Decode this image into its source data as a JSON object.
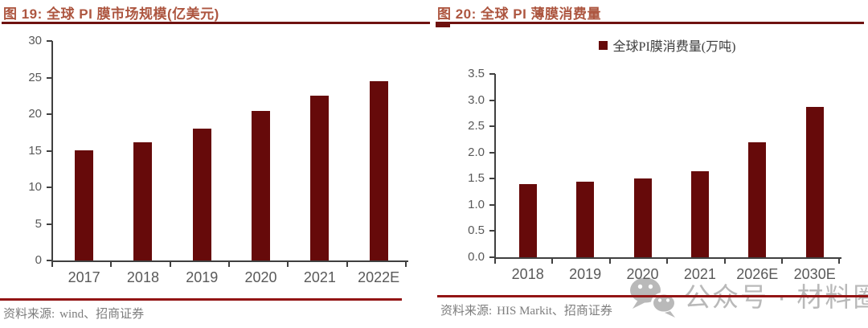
{
  "watermark": {
    "text": "公众号 · 材料圈",
    "icon": "wechat-icon"
  },
  "chart_data": [
    {
      "type": "bar",
      "title": "图 19: 全球 PI 膜市场规模(亿美元)",
      "categories": [
        "2017",
        "2018",
        "2019",
        "2020",
        "2021",
        "2022E"
      ],
      "values": [
        15.1,
        16.2,
        18.0,
        20.4,
        22.5,
        24.5
      ],
      "ylim": [
        0,
        30
      ],
      "yticks": [
        "0",
        "5",
        "10",
        "15",
        "20",
        "25",
        "30"
      ],
      "grid": false,
      "legend": null,
      "bar_color": "#660a0a",
      "source_label": "资料来源:",
      "source_text": "wind、招商证券"
    },
    {
      "type": "bar",
      "title": "图 20: 全球 PI 薄膜消费量",
      "categories": [
        "2018",
        "2019",
        "2020",
        "2021",
        "2026E",
        "2030E"
      ],
      "values": [
        1.4,
        1.45,
        1.5,
        1.65,
        2.2,
        2.87
      ],
      "ylim": [
        0,
        3.5
      ],
      "yticks": [
        "0.0",
        "0.5",
        "1.0",
        "1.5",
        "2.0",
        "2.5",
        "3.0",
        "3.5"
      ],
      "grid": false,
      "legend": "全球PI膜消费量(万吨)",
      "legend_position": "top-center",
      "bar_color": "#660a0a",
      "source_label": "资料来源:",
      "source_text": "HIS Markit、招商证券"
    }
  ],
  "colors": {
    "bar": "#660a0a",
    "title": "#ad5640",
    "underline": "#6f1210",
    "axis": "#404040",
    "tick": "#595959",
    "divider": "#931515",
    "source": "#7d7d7d",
    "wm": "#b9b9b9"
  }
}
